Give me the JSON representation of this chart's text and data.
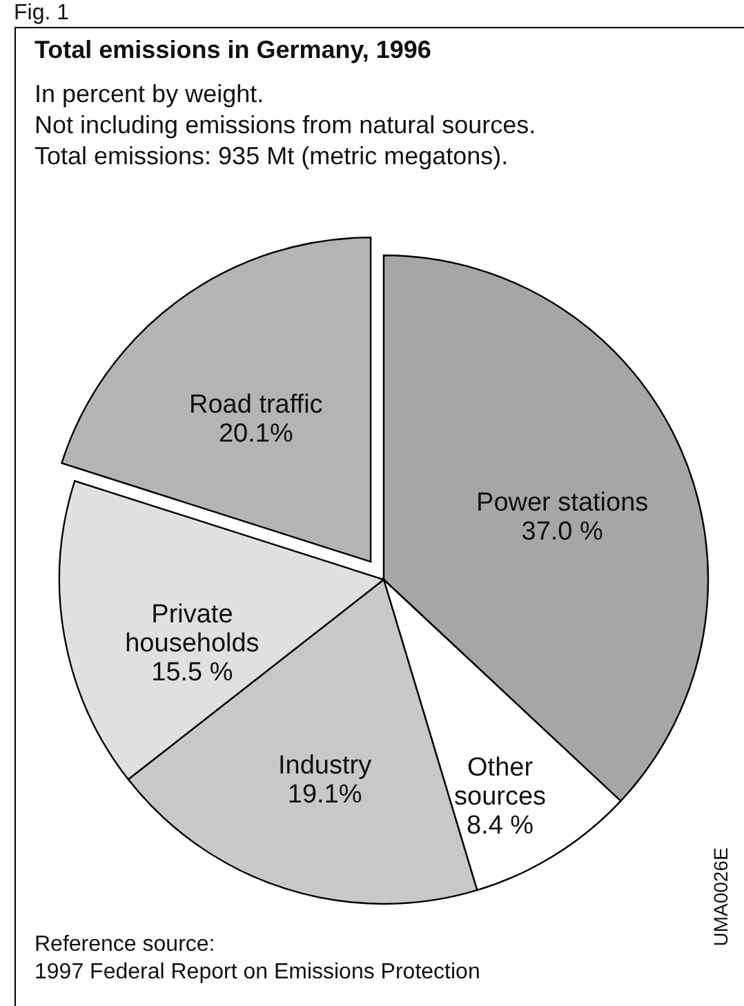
{
  "chart_data": {
    "type": "pie",
    "title": "Total emissions in Germany, 1996",
    "subtitle": "In percent by weight.\nNot including emissions from natural sources.\nTotal emissions: 935 Mt (metric megatons).",
    "categories": [
      "Power stations",
      "Other sources",
      "Industry",
      "Private households",
      "Road traffic"
    ],
    "values": [
      37.0,
      8.4,
      19.1,
      15.5,
      20.1
    ],
    "value_labels": [
      "37.0 %",
      "8.4 %",
      "19.1%",
      "15.5 %",
      "20.1%"
    ],
    "colors": [
      "#a6a6a6",
      "#ffffff",
      "#c8c8c8",
      "#e0e0e0",
      "#b4b4b4"
    ],
    "annotations": [
      "Fig. 1",
      "Reference source:\n1997 Federal Report on Emissions Protection",
      "UMA0026E"
    ]
  }
}
